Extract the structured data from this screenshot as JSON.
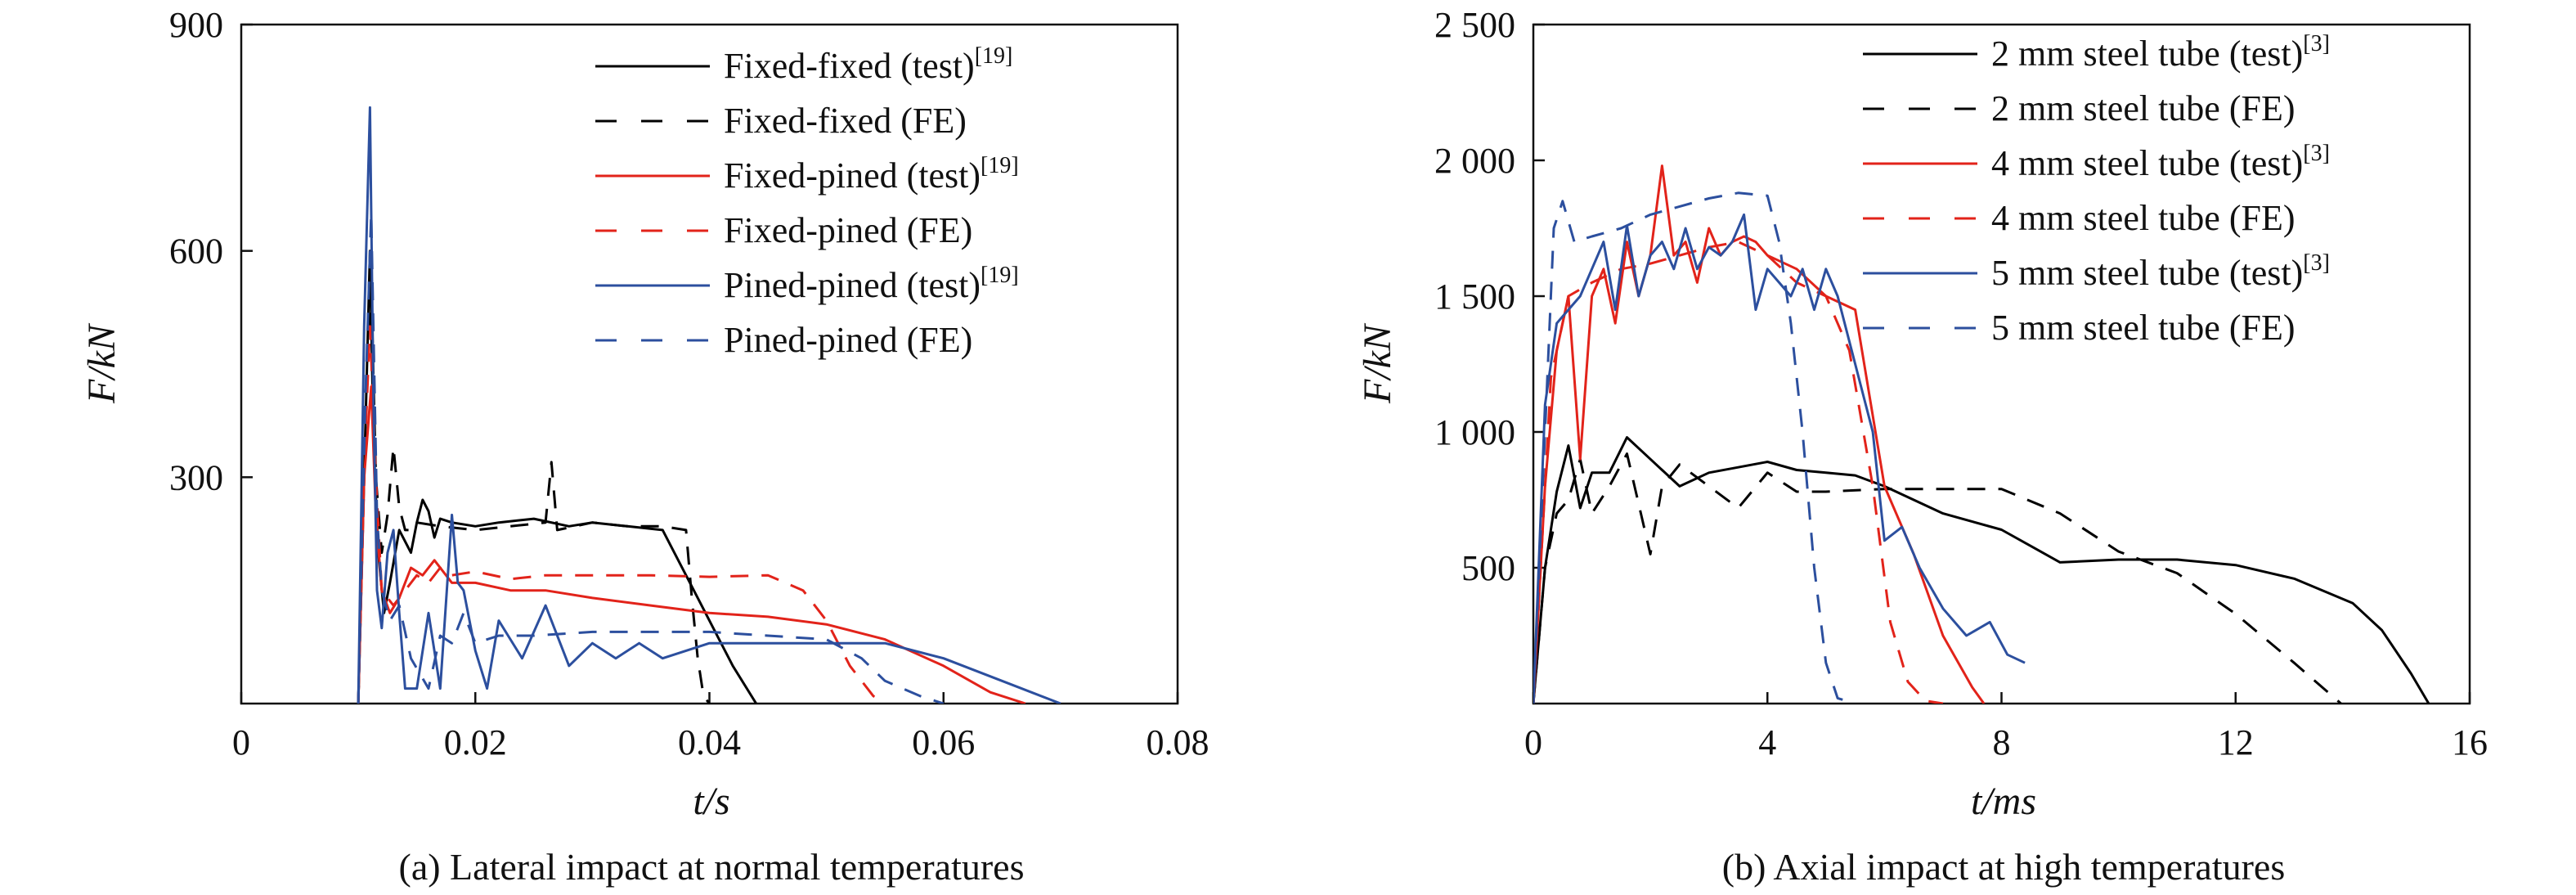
{
  "chart_data": [
    {
      "type": "line",
      "caption": "(a) Lateral impact at normal temperatures",
      "xlabel": "t/s",
      "ylabel": "F/kN",
      "xlim": [
        0,
        0.08
      ],
      "ylim": [
        0,
        900
      ],
      "xticks": [
        0,
        0.02,
        0.04,
        0.06,
        0.08
      ],
      "xtick_labels": [
        "0",
        "0.02",
        "0.04",
        "0.06",
        "0.08"
      ],
      "yticks": [
        300,
        600,
        900
      ],
      "ytick_labels": [
        "300",
        "600",
        "900"
      ],
      "grid": false,
      "legend_position": "top-right",
      "series": [
        {
          "name": "Fixed-fixed (test)",
          "ref": "[19]",
          "color": "#000000",
          "dash": "solid",
          "x": [
            0.01,
            0.0105,
            0.011,
            0.0113,
            0.0117,
            0.0122,
            0.0127,
            0.0135,
            0.0145,
            0.015,
            0.0155,
            0.016,
            0.0165,
            0.017,
            0.018,
            0.02,
            0.022,
            0.025,
            0.028,
            0.03,
            0.033,
            0.036,
            0.038,
            0.04,
            0.042,
            0.044
          ],
          "y": [
            0,
            300,
            600,
            350,
            200,
            120,
            160,
            230,
            200,
            240,
            270,
            255,
            220,
            245,
            240,
            235,
            240,
            245,
            235,
            240,
            235,
            230,
            170,
            110,
            50,
            0
          ]
        },
        {
          "name": "Fixed-fixed (FE)",
          "ref": "",
          "color": "#000000",
          "dash": "dashed",
          "x": [
            0.01,
            0.0106,
            0.0111,
            0.0115,
            0.012,
            0.0125,
            0.013,
            0.0135,
            0.014,
            0.0145,
            0.015,
            0.017,
            0.02,
            0.023,
            0.026,
            0.0265,
            0.027,
            0.03,
            0.033,
            0.036,
            0.038,
            0.0385,
            0.039,
            0.0395,
            0.04
          ],
          "y": [
            0,
            400,
            560,
            300,
            200,
            250,
            340,
            260,
            230,
            230,
            240,
            235,
            230,
            235,
            240,
            320,
            230,
            240,
            235,
            235,
            230,
            140,
            60,
            10,
            0
          ]
        },
        {
          "name": "Fixed-pined (test)",
          "ref": "[19]",
          "color": "#e2231a",
          "dash": "solid",
          "x": [
            0.01,
            0.0105,
            0.0111,
            0.0115,
            0.012,
            0.0127,
            0.0135,
            0.0145,
            0.0155,
            0.0165,
            0.018,
            0.02,
            0.023,
            0.026,
            0.03,
            0.035,
            0.04,
            0.045,
            0.05,
            0.055,
            0.06,
            0.064,
            0.067
          ],
          "y": [
            0,
            300,
            420,
            250,
            150,
            120,
            140,
            180,
            170,
            190,
            160,
            160,
            150,
            150,
            140,
            130,
            120,
            115,
            105,
            85,
            50,
            15,
            0
          ]
        },
        {
          "name": "Fixed-pined (FE)",
          "ref": "",
          "color": "#e2231a",
          "dash": "dashed",
          "x": [
            0.01,
            0.0106,
            0.011,
            0.0115,
            0.012,
            0.013,
            0.014,
            0.015,
            0.016,
            0.017,
            0.018,
            0.02,
            0.023,
            0.026,
            0.03,
            0.035,
            0.04,
            0.045,
            0.048,
            0.05,
            0.052,
            0.054,
            0.055
          ],
          "y": [
            0,
            350,
            500,
            300,
            150,
            130,
            150,
            170,
            160,
            180,
            170,
            175,
            165,
            170,
            170,
            170,
            168,
            170,
            150,
            110,
            50,
            10,
            0
          ]
        },
        {
          "name": "Pined-pined (test)",
          "ref": "[19]",
          "color": "#2c4f9e",
          "dash": "solid",
          "x": [
            0.01,
            0.0105,
            0.011,
            0.0113,
            0.0116,
            0.012,
            0.0125,
            0.013,
            0.0135,
            0.014,
            0.015,
            0.016,
            0.017,
            0.018,
            0.0185,
            0.019,
            0.02,
            0.021,
            0.022,
            0.024,
            0.026,
            0.028,
            0.03,
            0.032,
            0.034,
            0.036,
            0.04,
            0.045,
            0.05,
            0.055,
            0.06,
            0.065,
            0.07
          ],
          "y": [
            0,
            500,
            790,
            400,
            150,
            100,
            200,
            230,
            120,
            20,
            20,
            120,
            20,
            250,
            160,
            150,
            70,
            20,
            110,
            60,
            130,
            50,
            80,
            60,
            80,
            60,
            80,
            80,
            80,
            80,
            60,
            30,
            0
          ]
        },
        {
          "name": "Pined-pined (FE)",
          "ref": "",
          "color": "#2c4f9e",
          "dash": "dashed",
          "x": [
            0.01,
            0.0106,
            0.0111,
            0.0116,
            0.012,
            0.0127,
            0.0135,
            0.0145,
            0.016,
            0.017,
            0.018,
            0.019,
            0.02,
            0.022,
            0.025,
            0.03,
            0.035,
            0.04,
            0.045,
            0.05,
            0.053,
            0.055,
            0.058,
            0.06
          ],
          "y": [
            0,
            400,
            650,
            250,
            150,
            110,
            130,
            60,
            20,
            90,
            80,
            120,
            80,
            90,
            90,
            95,
            95,
            95,
            90,
            85,
            60,
            30,
            10,
            0
          ]
        }
      ]
    },
    {
      "type": "line",
      "caption": "(b) Axial impact at high temperatures",
      "xlabel": "t/ms",
      "ylabel": "F/kN",
      "xlim": [
        0,
        16
      ],
      "ylim": [
        0,
        2500
      ],
      "xticks": [
        0,
        4,
        8,
        12,
        16
      ],
      "xtick_labels": [
        "0",
        "4",
        "8",
        "12",
        "16"
      ],
      "yticks": [
        500,
        1000,
        1500,
        2000,
        2500
      ],
      "ytick_labels": [
        "500",
        "1 000",
        "1 500",
        "2 000",
        "2 500"
      ],
      "grid": false,
      "legend_position": "top-right",
      "series": [
        {
          "name": "2 mm steel tube (test)",
          "ref": "[3]",
          "color": "#000000",
          "dash": "solid",
          "x": [
            0.0,
            0.2,
            0.4,
            0.6,
            0.8,
            1.0,
            1.3,
            1.6,
            2.0,
            2.5,
            3.0,
            3.5,
            4.0,
            4.5,
            5.0,
            5.5,
            6.0,
            7.0,
            8.0,
            8.5,
            9.0,
            10.0,
            11.0,
            12.0,
            13.0,
            14.0,
            14.5,
            15.0,
            15.3
          ],
          "y": [
            0,
            500,
            780,
            950,
            720,
            850,
            850,
            980,
            900,
            800,
            850,
            870,
            890,
            860,
            850,
            840,
            800,
            700,
            640,
            580,
            520,
            530,
            530,
            510,
            460,
            370,
            270,
            110,
            0
          ]
        },
        {
          "name": "2 mm steel tube (FE)",
          "ref": "",
          "color": "#000000",
          "dash": "dashed",
          "x": [
            0.0,
            0.2,
            0.4,
            0.6,
            0.8,
            1.0,
            1.3,
            1.6,
            2.0,
            2.2,
            2.5,
            3.0,
            3.5,
            4.0,
            4.5,
            5.0,
            6.0,
            7.0,
            8.0,
            9.0,
            10.0,
            11.0,
            12.0,
            13.0,
            13.8
          ],
          "y": [
            0,
            500,
            700,
            750,
            900,
            700,
            800,
            920,
            550,
            800,
            880,
            800,
            720,
            850,
            780,
            780,
            790,
            790,
            790,
            700,
            560,
            480,
            330,
            150,
            0
          ]
        },
        {
          "name": "4 mm steel tube (test)",
          "ref": "[3]",
          "color": "#e2231a",
          "dash": "solid",
          "x": [
            0.0,
            0.2,
            0.4,
            0.6,
            0.8,
            1.0,
            1.2,
            1.4,
            1.6,
            1.8,
            2.0,
            2.2,
            2.4,
            2.6,
            2.8,
            3.0,
            3.2,
            3.4,
            3.6,
            3.8,
            4.0,
            4.5,
            5.0,
            5.5,
            6.0,
            6.5,
            7.0,
            7.5,
            7.7
          ],
          "y": [
            0,
            800,
            1300,
            1500,
            900,
            1500,
            1600,
            1400,
            1700,
            1500,
            1650,
            1980,
            1650,
            1700,
            1550,
            1750,
            1650,
            1700,
            1720,
            1700,
            1650,
            1600,
            1500,
            1450,
            800,
            550,
            250,
            60,
            0
          ]
        },
        {
          "name": "4 mm steel tube (FE)",
          "ref": "",
          "color": "#e2231a",
          "dash": "dashed",
          "x": [
            0.0,
            0.3,
            0.6,
            1.0,
            1.5,
            2.0,
            2.5,
            3.0,
            3.5,
            4.0,
            4.5,
            5.0,
            5.4,
            5.8,
            6.1,
            6.4,
            6.7,
            7.0
          ],
          "y": [
            0,
            1200,
            1500,
            1550,
            1600,
            1620,
            1650,
            1680,
            1700,
            1650,
            1550,
            1500,
            1300,
            800,
            300,
            80,
            10,
            0
          ]
        },
        {
          "name": "5 mm steel tube (test)",
          "ref": "[3]",
          "color": "#2c4f9e",
          "dash": "solid",
          "x": [
            0.0,
            0.2,
            0.4,
            0.6,
            0.8,
            1.0,
            1.2,
            1.4,
            1.6,
            1.8,
            2.0,
            2.2,
            2.4,
            2.6,
            2.8,
            3.0,
            3.2,
            3.4,
            3.6,
            3.8,
            4.0,
            4.2,
            4.4,
            4.6,
            4.8,
            5.0,
            5.2,
            5.5,
            5.8,
            6.0,
            6.3,
            6.6,
            7.0,
            7.4,
            7.8,
            8.1,
            8.4
          ],
          "y": [
            0,
            1100,
            1400,
            1450,
            1500,
            1600,
            1700,
            1450,
            1760,
            1500,
            1650,
            1700,
            1600,
            1750,
            1600,
            1680,
            1650,
            1700,
            1800,
            1450,
            1600,
            1550,
            1500,
            1600,
            1450,
            1600,
            1500,
            1250,
            1000,
            600,
            650,
            500,
            350,
            250,
            300,
            180,
            150
          ]
        },
        {
          "name": "5 mm steel tube (FE)",
          "ref": "",
          "color": "#2c4f9e",
          "dash": "dashed",
          "x": [
            0.0,
            0.2,
            0.35,
            0.5,
            0.7,
            1.0,
            1.5,
            2.0,
            2.5,
            3.0,
            3.5,
            4.0,
            4.2,
            4.4,
            4.6,
            4.8,
            5.0,
            5.2,
            5.5
          ],
          "y": [
            0,
            1000,
            1750,
            1850,
            1700,
            1720,
            1750,
            1800,
            1830,
            1860,
            1880,
            1870,
            1700,
            1400,
            1000,
            500,
            150,
            20,
            0
          ]
        }
      ]
    }
  ]
}
